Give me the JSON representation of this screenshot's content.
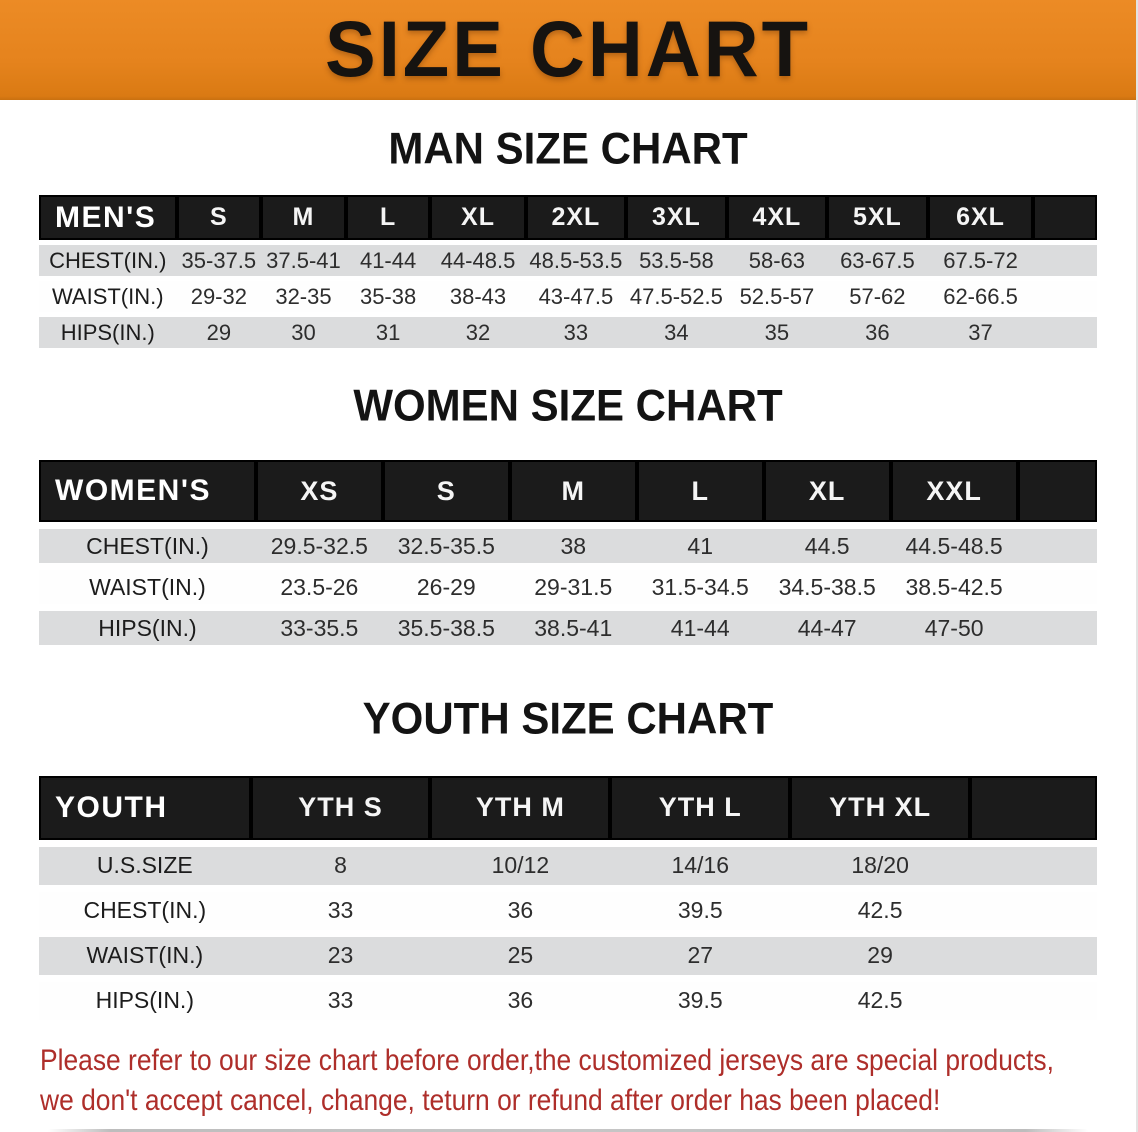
{
  "banner": {
    "title": "SIZE CHART"
  },
  "sections": [
    {
      "id": "men",
      "heading": "MAN SIZE CHART",
      "group_label": "MEN'S",
      "columns": [
        "S",
        "M",
        "L",
        "XL",
        "2XL",
        "3XL",
        "4XL",
        "5XL",
        "6XL"
      ],
      "rows": [
        {
          "label": "CHEST(IN.)",
          "values": [
            "35-37.5",
            "37.5-41",
            "41-44",
            "44-48.5",
            "48.5-53.5",
            "53.5-58",
            "58-63",
            "63-67.5",
            "67.5-72"
          ]
        },
        {
          "label": "WAIST(IN.)",
          "values": [
            "29-32",
            "32-35",
            "35-38",
            "38-43",
            "43-47.5",
            "47.5-52.5",
            "52.5-57",
            "57-62",
            "62-66.5"
          ]
        },
        {
          "label": "HIPS(IN.)",
          "values": [
            "29",
            "30",
            "31",
            "32",
            "33",
            "34",
            "35",
            "36",
            "37"
          ]
        }
      ]
    },
    {
      "id": "women",
      "heading": "WOMEN SIZE CHART",
      "group_label": "WOMEN'S",
      "columns": [
        "XS",
        "S",
        "M",
        "L",
        "XL",
        "XXL"
      ],
      "rows": [
        {
          "label": "CHEST(IN.)",
          "values": [
            "29.5-32.5",
            "32.5-35.5",
            "38",
            "41",
            "44.5",
            "44.5-48.5"
          ]
        },
        {
          "label": "WAIST(IN.)",
          "values": [
            "23.5-26",
            "26-29",
            "29-31.5",
            "31.5-34.5",
            "34.5-38.5",
            "38.5-42.5"
          ]
        },
        {
          "label": "HIPS(IN.)",
          "values": [
            "33-35.5",
            "35.5-38.5",
            "38.5-41",
            "41-44",
            "44-47",
            "47-50"
          ]
        }
      ]
    },
    {
      "id": "youth",
      "heading": "YOUTH SIZE CHART",
      "group_label": "YOUTH",
      "columns": [
        "YTH S",
        "YTH M",
        "YTH L",
        "YTH XL"
      ],
      "rows": [
        {
          "label": "U.S.SIZE",
          "values": [
            "8",
            "10/12",
            "14/16",
            "18/20"
          ]
        },
        {
          "label": "CHEST(IN.)",
          "values": [
            "33",
            "36",
            "39.5",
            "42.5"
          ]
        },
        {
          "label": "WAIST(IN.)",
          "values": [
            "23",
            "25",
            "27",
            "29"
          ]
        },
        {
          "label": "HIPS(IN.)",
          "values": [
            "33",
            "36",
            "39.5",
            "42.5"
          ]
        }
      ]
    }
  ],
  "disclaimer": {
    "line1": "Please refer to our size chart before order,the customized jerseys are special products,",
    "line2": "we don't accept cancel, change, teturn or refund after order has been placed!"
  },
  "colors": {
    "banner_bg": "#E5831D",
    "header_bar": "#1B1B1B",
    "row_stripe": "#DBDCDD",
    "disclaimer_red": "#AE2E2A"
  }
}
